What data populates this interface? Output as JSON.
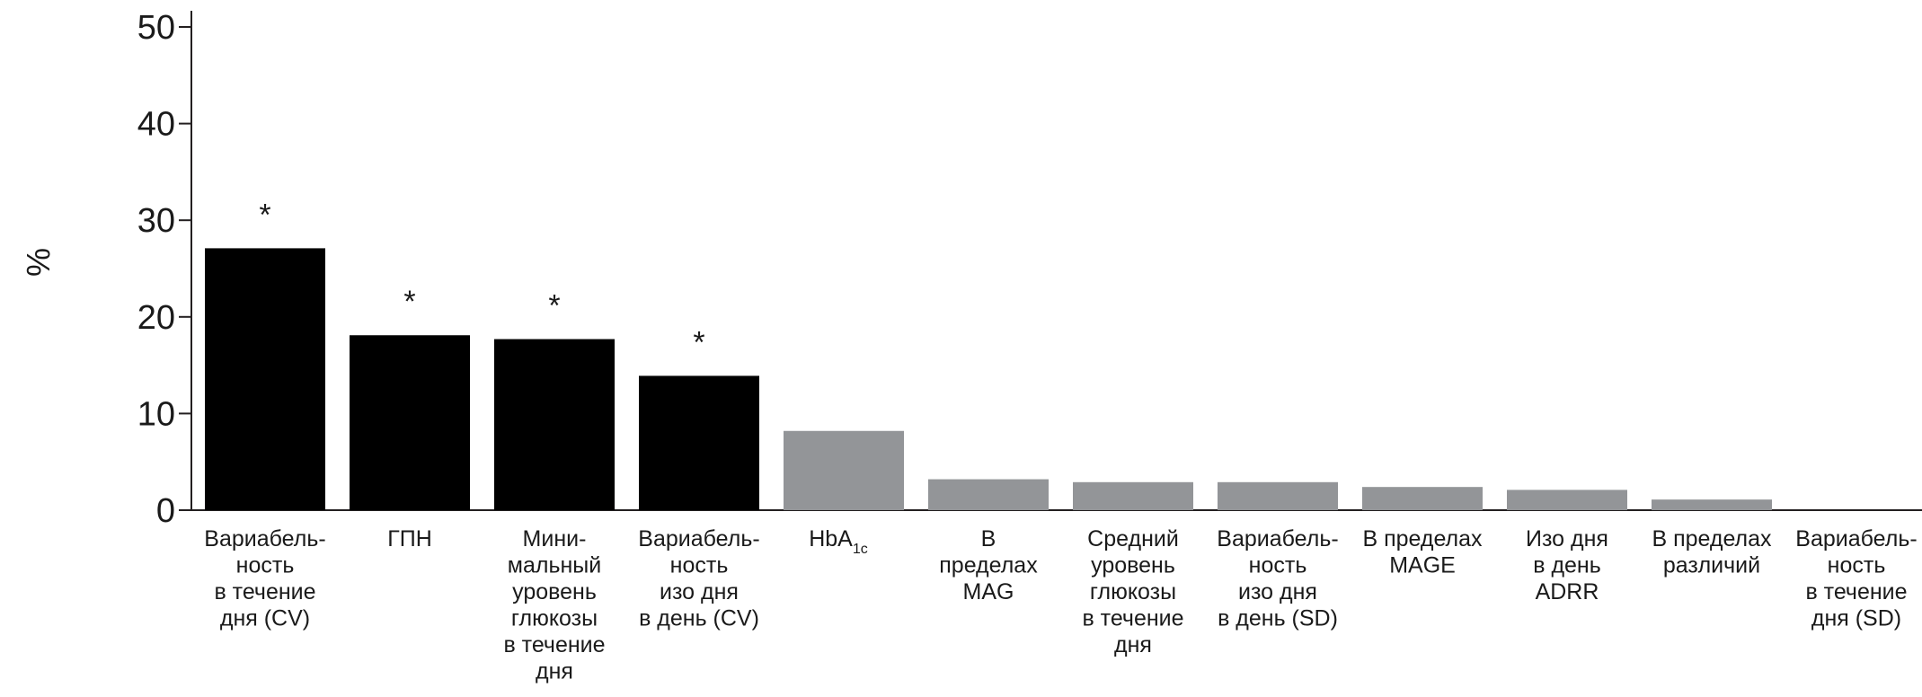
{
  "chart_data": {
    "type": "bar",
    "ylabel": "%",
    "ylim": [
      0,
      50
    ],
    "yticks": [
      "0",
      "10",
      "20",
      "30",
      "40",
      "50"
    ],
    "grid": false,
    "legend": "none",
    "categories": [
      {
        "lines": [
          "Вариабель-",
          "ность",
          "в течение",
          "дня (CV)"
        ],
        "text": "Вариабельность в течение дня (CV)"
      },
      {
        "lines": [
          "ГПН"
        ],
        "text": "ГПН"
      },
      {
        "lines": [
          "Мини-",
          "мальный",
          "уровень",
          "глюкозы",
          "в течение",
          "дня"
        ],
        "text": "Минимальный уровень глюкозы в течение дня"
      },
      {
        "lines": [
          "Вариабель-",
          "ность",
          "изо дня",
          "в день (CV)"
        ],
        "text": "Вариабельность изо дня в день (CV)"
      },
      {
        "lines": [
          "HbA"
        ],
        "sub": "1c",
        "text": "HbA1c"
      },
      {
        "lines": [
          "В",
          "пределах",
          "MAG"
        ],
        "text": "В пределах MAG"
      },
      {
        "lines": [
          "Средний",
          "уровень",
          "глюкозы",
          "в течение",
          "дня"
        ],
        "text": "Средний уровень глюкозы в течение дня"
      },
      {
        "lines": [
          "Вариабель-",
          "ность",
          "изо дня",
          "в день (SD)"
        ],
        "text": "Вариабельность изо дня в день (SD)"
      },
      {
        "lines": [
          "В пределах",
          "MAGE"
        ],
        "text": "В пределах MAGE"
      },
      {
        "lines": [
          "Изо дня",
          "в день",
          "ADRR"
        ],
        "text": "Изо дня в день ADRR"
      },
      {
        "lines": [
          "В пределах",
          "различий"
        ],
        "text": "В пределах различий"
      },
      {
        "lines": [
          "Вариабель-",
          "ность",
          "в течение",
          "дня (SD)"
        ],
        "text": "Вариабельность в течение дня (SD)"
      }
    ],
    "values": [
      27.1,
      18.1,
      17.7,
      13.9,
      8.2,
      3.2,
      2.9,
      2.9,
      2.4,
      2.1,
      1.1,
      0.0
    ],
    "significant": [
      true,
      true,
      true,
      true,
      false,
      false,
      false,
      false,
      false,
      false,
      false,
      false
    ],
    "significance_marker": "*",
    "colors": {
      "significant": "#000000",
      "other": "#939598",
      "axis": "#231f20"
    }
  }
}
